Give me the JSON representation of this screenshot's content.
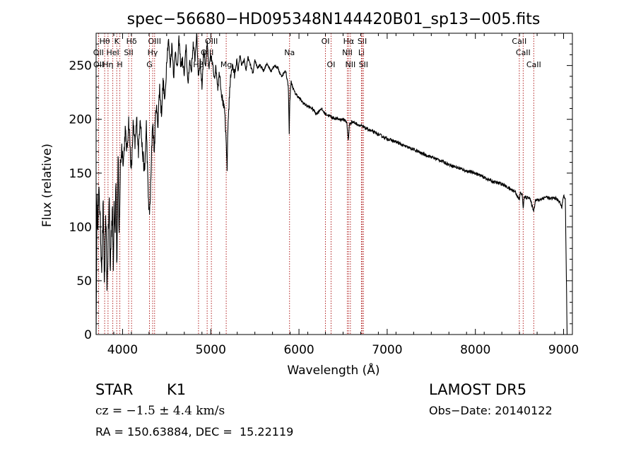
{
  "chart_data": {
    "type": "line",
    "title": "spec−56680−HD095348N144420B01_sp13−005.fits",
    "xlabel": "Wavelength (Å)",
    "ylabel": "Flux (relative)",
    "xlim": [
      3700,
      9100
    ],
    "ylim": [
      0,
      280
    ],
    "xticks": [
      4000,
      5000,
      6000,
      7000,
      8000,
      9000
    ],
    "yticks": [
      0,
      50,
      100,
      150,
      200,
      250
    ],
    "grid": false,
    "colors": {
      "spectrum": "#000000",
      "line_marker": "#b22222",
      "axes": "#000000"
    },
    "series": [
      {
        "values_by_wavelength": [
          [
            3700,
            0
          ],
          [
            3710,
            125
          ],
          [
            3720,
            105
          ],
          [
            3735,
            135
          ],
          [
            3750,
            95
          ],
          [
            3765,
            60
          ],
          [
            3780,
            120
          ],
          [
            3795,
            45
          ],
          [
            3810,
            110
          ],
          [
            3825,
            40
          ],
          [
            3840,
            100
          ],
          [
            3850,
            125
          ],
          [
            3860,
            55
          ],
          [
            3870,
            95
          ],
          [
            3885,
            115
          ],
          [
            3895,
            60
          ],
          [
            3905,
            130
          ],
          [
            3915,
            95
          ],
          [
            3925,
            150
          ],
          [
            3935,
            60
          ],
          [
            3950,
            170
          ],
          [
            3960,
            85
          ],
          [
            3975,
            155
          ],
          [
            3990,
            175
          ],
          [
            4010,
            160
          ],
          [
            4030,
            190
          ],
          [
            4050,
            170
          ],
          [
            4070,
            200
          ],
          [
            4100,
            150
          ],
          [
            4120,
            195
          ],
          [
            4140,
            175
          ],
          [
            4160,
            200
          ],
          [
            4180,
            170
          ],
          [
            4200,
            205
          ],
          [
            4220,
            175
          ],
          [
            4250,
            150
          ],
          [
            4270,
            195
          ],
          [
            4290,
            130
          ],
          [
            4305,
            110
          ],
          [
            4320,
            140
          ],
          [
            4340,
            200
          ],
          [
            4360,
            170
          ],
          [
            4380,
            215
          ],
          [
            4400,
            195
          ],
          [
            4420,
            230
          ],
          [
            4440,
            205
          ],
          [
            4460,
            235
          ],
          [
            4480,
            215
          ],
          [
            4500,
            255
          ],
          [
            4520,
            275
          ],
          [
            4540,
            250
          ],
          [
            4560,
            270
          ],
          [
            4580,
            240
          ],
          [
            4600,
            265
          ],
          [
            4620,
            245
          ],
          [
            4640,
            275
          ],
          [
            4660,
            250
          ],
          [
            4680,
            255
          ],
          [
            4700,
            240
          ],
          [
            4720,
            270
          ],
          [
            4740,
            230
          ],
          [
            4760,
            255
          ],
          [
            4780,
            245
          ],
          [
            4800,
            270
          ],
          [
            4820,
            255
          ],
          [
            4840,
            280
          ],
          [
            4860,
            240
          ],
          [
            4880,
            255
          ],
          [
            4900,
            230
          ],
          [
            4920,
            265
          ],
          [
            4940,
            250
          ],
          [
            4960,
            270
          ],
          [
            4980,
            245
          ],
          [
            5000,
            260
          ],
          [
            5020,
            250
          ],
          [
            5040,
            240
          ],
          [
            5060,
            248
          ],
          [
            5080,
            230
          ],
          [
            5100,
            245
          ],
          [
            5120,
            225
          ],
          [
            5140,
            215
          ],
          [
            5160,
            205
          ],
          [
            5175,
            175
          ],
          [
            5185,
            155
          ],
          [
            5195,
            195
          ],
          [
            5210,
            220
          ],
          [
            5230,
            245
          ],
          [
            5250,
            250
          ],
          [
            5270,
            240
          ],
          [
            5290,
            255
          ],
          [
            5310,
            245
          ],
          [
            5330,
            260
          ],
          [
            5350,
            250
          ],
          [
            5380,
            255
          ],
          [
            5400,
            245
          ],
          [
            5420,
            258
          ],
          [
            5450,
            250
          ],
          [
            5480,
            242
          ],
          [
            5500,
            255
          ],
          [
            5530,
            248
          ],
          [
            5560,
            250
          ],
          [
            5600,
            245
          ],
          [
            5640,
            252
          ],
          [
            5680,
            245
          ],
          [
            5720,
            250
          ],
          [
            5760,
            248
          ],
          [
            5800,
            240
          ],
          [
            5850,
            245
          ],
          [
            5880,
            230
          ],
          [
            5890,
            185
          ],
          [
            5895,
            215
          ],
          [
            5910,
            235
          ],
          [
            5950,
            225
          ],
          [
            6000,
            220
          ],
          [
            6050,
            215
          ],
          [
            6100,
            212
          ],
          [
            6150,
            210
          ],
          [
            6200,
            205
          ],
          [
            6250,
            210
          ],
          [
            6300,
            205
          ],
          [
            6350,
            203
          ],
          [
            6400,
            201
          ],
          [
            6450,
            200
          ],
          [
            6500,
            200
          ],
          [
            6540,
            198
          ],
          [
            6560,
            180
          ],
          [
            6570,
            195
          ],
          [
            6600,
            198
          ],
          [
            6650,
            196
          ],
          [
            6700,
            194
          ],
          [
            6750,
            192
          ],
          [
            6800,
            190
          ],
          [
            6900,
            186
          ],
          [
            7000,
            182
          ],
          [
            7100,
            179
          ],
          [
            7200,
            175
          ],
          [
            7300,
            172
          ],
          [
            7400,
            168
          ],
          [
            7500,
            165
          ],
          [
            7600,
            162
          ],
          [
            7700,
            158
          ],
          [
            7800,
            155
          ],
          [
            7900,
            152
          ],
          [
            8000,
            150
          ],
          [
            8100,
            146
          ],
          [
            8200,
            142
          ],
          [
            8300,
            140
          ],
          [
            8400,
            135
          ],
          [
            8450,
            133
          ],
          [
            8498,
            125
          ],
          [
            8510,
            132
          ],
          [
            8530,
            130
          ],
          [
            8542,
            118
          ],
          [
            8555,
            128
          ],
          [
            8580,
            127
          ],
          [
            8610,
            128
          ],
          [
            8662,
            115
          ],
          [
            8680,
            125
          ],
          [
            8720,
            125
          ],
          [
            8800,
            128
          ],
          [
            8850,
            126
          ],
          [
            8900,
            127
          ],
          [
            8950,
            124
          ],
          [
            8980,
            118
          ],
          [
            9000,
            130
          ],
          [
            9020,
            125
          ],
          [
            9040,
            0
          ]
        ]
      }
    ],
    "line_markers": [
      {
        "label": "Hθ",
        "wavelength": 3797,
        "row": 1
      },
      {
        "label": "OII",
        "wavelength": 3727,
        "row": 2
      },
      {
        "label": "OII",
        "wavelength": 3729,
        "row": 3
      },
      {
        "label": "K",
        "wavelength": 3934,
        "row": 1
      },
      {
        "label": "HeI",
        "wavelength": 3889,
        "row": 2
      },
      {
        "label": "Hη",
        "wavelength": 3835,
        "row": 3
      },
      {
        "label": "H",
        "wavelength": 3969,
        "row": 3
      },
      {
        "label": "SII",
        "wavelength": 4069,
        "row": 2
      },
      {
        "label": "Hδ",
        "wavelength": 4102,
        "row": 1
      },
      {
        "label": "OIII",
        "wavelength": 4363,
        "row": 1
      },
      {
        "label": "Hγ",
        "wavelength": 4341,
        "row": 2
      },
      {
        "label": "G",
        "wavelength": 4305,
        "row": 3
      },
      {
        "label": "OIII",
        "wavelength": 5007,
        "row": 1
      },
      {
        "label": "OIII",
        "wavelength": 4959,
        "row": 2
      },
      {
        "label": "Hβ",
        "wavelength": 4861,
        "row": 3
      },
      {
        "label": "Mg",
        "wavelength": 5175,
        "row": 3
      },
      {
        "label": "Na",
        "wavelength": 5893,
        "row": 2
      },
      {
        "label": "OI",
        "wavelength": 6300,
        "row": 1
      },
      {
        "label": "OI",
        "wavelength": 6364,
        "row": 3
      },
      {
        "label": "Hα",
        "wavelength": 6563,
        "row": 1
      },
      {
        "label": "NII",
        "wavelength": 6548,
        "row": 2
      },
      {
        "label": "NII",
        "wavelength": 6583,
        "row": 3
      },
      {
        "label": "SII",
        "wavelength": 6717,
        "row": 1
      },
      {
        "label": "Li",
        "wavelength": 6708,
        "row": 2
      },
      {
        "label": "SII",
        "wavelength": 6731,
        "row": 3
      },
      {
        "label": "CaII",
        "wavelength": 8498,
        "row": 1
      },
      {
        "label": "CaII",
        "wavelength": 8542,
        "row": 2
      },
      {
        "label": "CaII",
        "wavelength": 8662,
        "row": 3
      }
    ]
  },
  "info": {
    "object_class": "STAR",
    "subclass": "K1",
    "survey": "LAMOST DR5",
    "cz": "cz = −1.5 ± 4.4 km/s",
    "obs_date": "Obs−Date: 20140122",
    "coords": "RA = 150.63884, DEC =  15.22119"
  }
}
